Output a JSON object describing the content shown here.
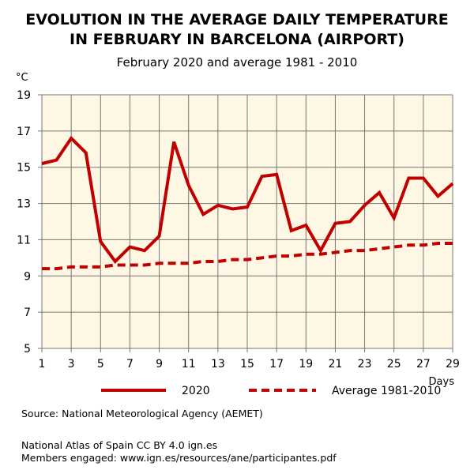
{
  "chart_data": {
    "type": "line",
    "title": "EVOLUTION IN THE AVERAGE DAILY TEMPERATURE\nIN FEBRUARY IN BARCELONA (AIRPORT)",
    "title_line1": "EVOLUTION IN THE AVERAGE DAILY TEMPERATURE",
    "title_line2": "IN FEBRUARY IN BARCELONA (AIRPORT)",
    "subtitle": "February 2020 and average 1981 - 2010",
    "ylabel": "°C",
    "xlabel": "Days",
    "xlim": [
      1,
      29
    ],
    "ylim": [
      5,
      19
    ],
    "xticks": [
      1,
      3,
      5,
      7,
      9,
      11,
      13,
      15,
      17,
      19,
      21,
      23,
      25,
      27,
      29
    ],
    "yticks": [
      5,
      7,
      9,
      11,
      13,
      15,
      17,
      19
    ],
    "grid": true,
    "legend_position": "bottom",
    "x": [
      1,
      2,
      3,
      4,
      5,
      6,
      7,
      8,
      9,
      10,
      11,
      12,
      13,
      14,
      15,
      16,
      17,
      18,
      19,
      20,
      21,
      22,
      23,
      24,
      25,
      26,
      27,
      28,
      29
    ],
    "series": [
      {
        "name": "2020",
        "style": "solid",
        "color": "#c00000",
        "values": [
          15.2,
          15.4,
          16.6,
          15.8,
          10.9,
          9.8,
          10.6,
          10.4,
          11.2,
          16.4,
          14.0,
          12.4,
          12.9,
          12.7,
          12.8,
          14.5,
          14.6,
          11.5,
          11.8,
          10.4,
          11.9,
          12.0,
          12.9,
          13.6,
          12.2,
          14.4,
          14.4,
          13.4,
          14.1
        ]
      },
      {
        "name": "Average 1981-2010",
        "style": "dashed",
        "color": "#c00000",
        "values": [
          9.4,
          9.4,
          9.5,
          9.5,
          9.5,
          9.6,
          9.6,
          9.6,
          9.7,
          9.7,
          9.7,
          9.8,
          9.8,
          9.9,
          9.9,
          10.0,
          10.1,
          10.1,
          10.2,
          10.2,
          10.3,
          10.4,
          10.4,
          10.5,
          10.6,
          10.7,
          10.7,
          10.8,
          10.8
        ]
      }
    ],
    "plot_background": "#fdf7e4"
  },
  "footer": {
    "source": "Source: National Meteorological Agency (AEMET)",
    "license": "National Atlas of Spain CC BY 4.0 ign.es",
    "members": "Members engaged: www.ign.es/resources/ane/participantes.pdf"
  }
}
